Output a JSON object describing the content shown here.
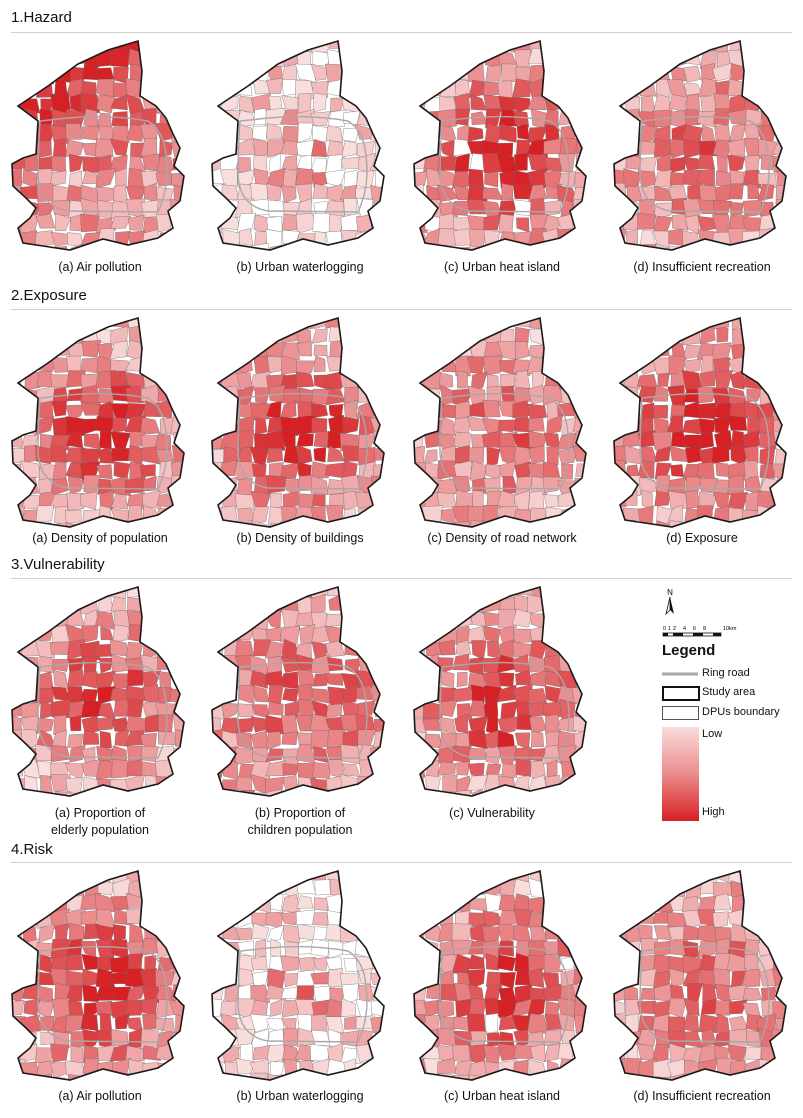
{
  "palette": {
    "low": "#f7d5d5",
    "high": "#d62024",
    "empty": "#ffffff",
    "ring": "#a8a8a8",
    "dpu": "#666666",
    "study": "#1a1a1a"
  },
  "sections": [
    {
      "title": "1.Hazard",
      "maps": [
        {
          "caption": [
            "(a) Air pollution"
          ],
          "seed": 11,
          "bias": "nw",
          "base": 0.55,
          "empty": 0
        },
        {
          "caption": [
            "(b) Urban waterlogging"
          ],
          "seed": 23,
          "bias": "low",
          "base": 0.2,
          "empty": 0.3
        },
        {
          "caption": [
            "(c) Urban heat island"
          ],
          "seed": 37,
          "bias": "center",
          "base": 0.5,
          "empty": 0.02
        },
        {
          "caption": [
            "(d) Insufficient recreation"
          ],
          "seed": 41,
          "bias": "mixed",
          "base": 0.45,
          "empty": 0
        }
      ]
    },
    {
      "title": "2.Exposure",
      "maps": [
        {
          "caption": [
            "(a) Density of population"
          ],
          "seed": 53,
          "bias": "center",
          "base": 0.4,
          "empty": 0
        },
        {
          "caption": [
            "(b) Density of buildings"
          ],
          "seed": 61,
          "bias": "center",
          "base": 0.45,
          "empty": 0
        },
        {
          "caption": [
            "(c) Density of road network"
          ],
          "seed": 71,
          "bias": "mixed",
          "base": 0.45,
          "empty": 0
        },
        {
          "caption": [
            "(d) Exposure"
          ],
          "seed": 83,
          "bias": "center",
          "base": 0.55,
          "empty": 0
        }
      ]
    },
    {
      "title": "3.Vulnerability",
      "maps": [
        {
          "caption": [
            "(a) Proportion of",
            "elderly population"
          ],
          "seed": 97,
          "bias": "center",
          "base": 0.35,
          "empty": 0
        },
        {
          "caption": [
            "(b) Proportion of",
            "children population"
          ],
          "seed": 101,
          "bias": "mixed",
          "base": 0.6,
          "empty": 0
        },
        {
          "caption": [
            "(c) Vulnerability"
          ],
          "seed": 113,
          "bias": "center",
          "base": 0.45,
          "empty": 0
        }
      ]
    },
    {
      "title": "4.Risk",
      "maps": [
        {
          "caption": [
            "(a) Air pollution"
          ],
          "seed": 127,
          "bias": "center",
          "base": 0.5,
          "empty": 0
        },
        {
          "caption": [
            "(b) Urban waterlogging"
          ],
          "seed": 131,
          "bias": "low",
          "base": 0.2,
          "empty": 0.3
        },
        {
          "caption": [
            "(c) Urban heat island"
          ],
          "seed": 139,
          "bias": "center",
          "base": 0.45,
          "empty": 0.02
        },
        {
          "caption": [
            "(d) Insufficient recreation"
          ],
          "seed": 149,
          "bias": "mixed",
          "base": 0.45,
          "empty": 0
        }
      ]
    }
  ],
  "legend": {
    "north": "N",
    "scale_ticks": [
      "0",
      "1",
      "2",
      "4",
      "6",
      "8",
      "10km"
    ],
    "title": "Legend",
    "ring_road": "Ring road",
    "study_area": "Study area",
    "dpus_boundary": "DPUs boundary",
    "low": "Low",
    "high": "High"
  }
}
